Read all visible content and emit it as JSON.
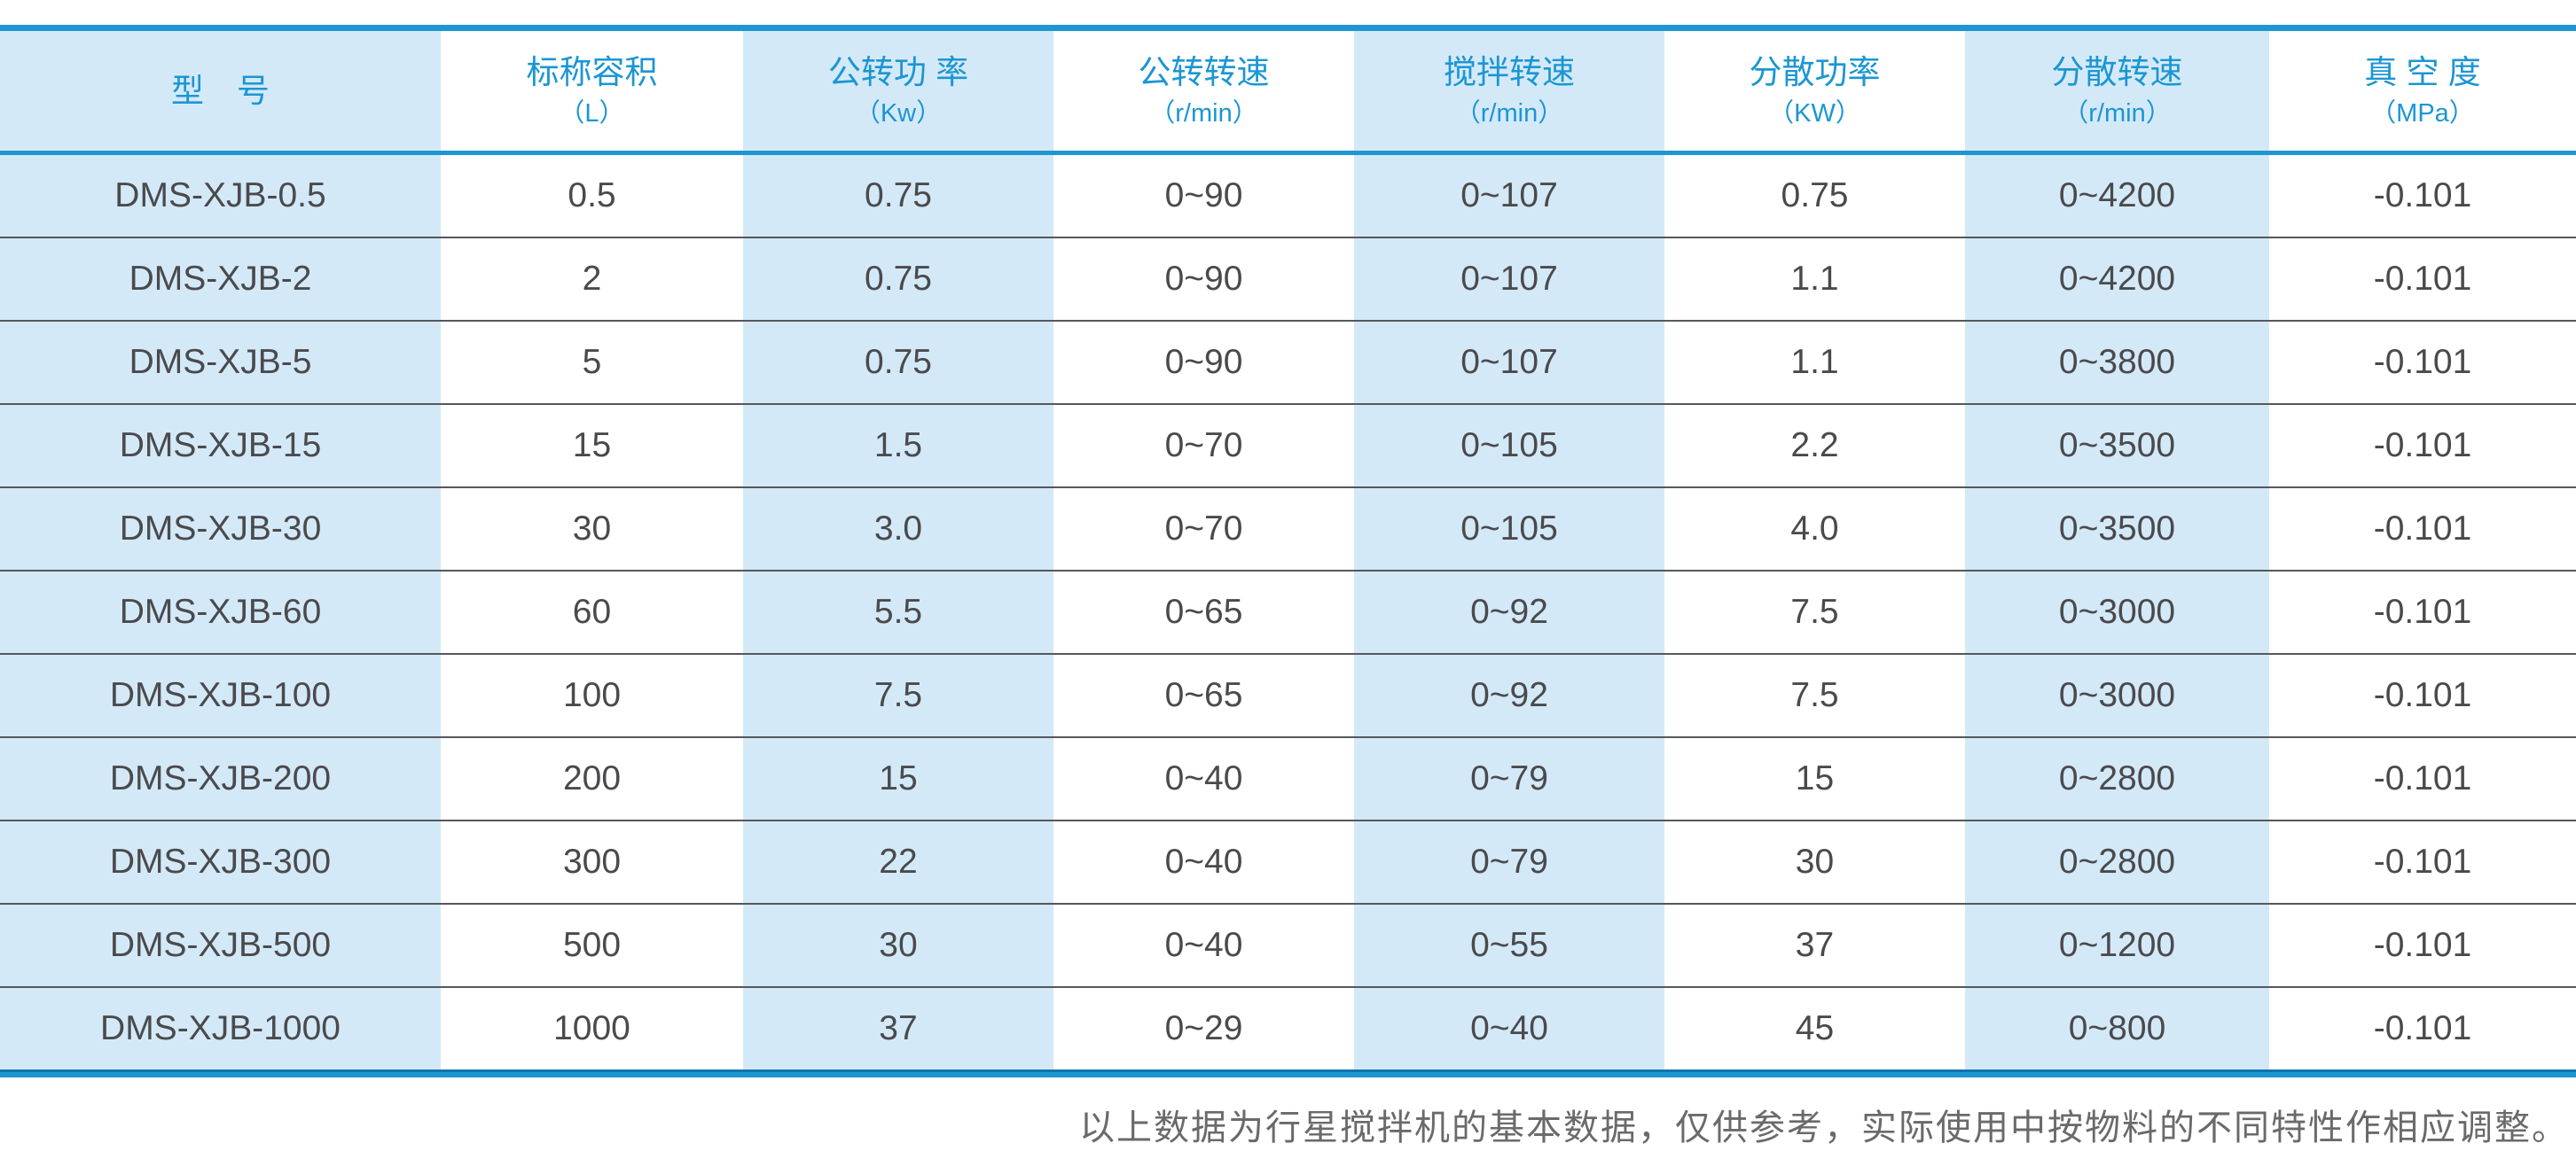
{
  "colors": {
    "accent_blue": "#1e96d2",
    "accent_blue_dark": "#1173ad",
    "header_text_blue": "#1b96d3",
    "cell_shade_blue": "#d4e9f7",
    "row_separator_gray": "#55585b",
    "data_text_gray": "#4a4a4d",
    "footnote_gray": "#6a6a6a"
  },
  "spec_table": {
    "columns": [
      {
        "label": "型　号",
        "unit": ""
      },
      {
        "label": "标称容积",
        "unit": "（L）"
      },
      {
        "label": "公转功 率",
        "unit": "（Kw）"
      },
      {
        "label": "公转转速",
        "unit": "（r/min）"
      },
      {
        "label": "搅拌转速",
        "unit": "（r/min）"
      },
      {
        "label": "分散功率",
        "unit": "（KW）"
      },
      {
        "label": "分散转速",
        "unit": "（r/min）"
      },
      {
        "label": "真 空 度",
        "unit": "（MPa）"
      }
    ],
    "rows": [
      [
        "DMS-XJB-0.5",
        "0.5",
        "0.75",
        "0~90",
        "0~107",
        "0.75",
        "0~4200",
        "-0.101"
      ],
      [
        "DMS-XJB-2",
        "2",
        "0.75",
        "0~90",
        "0~107",
        "1.1",
        "0~4200",
        "-0.101"
      ],
      [
        "DMS-XJB-5",
        "5",
        "0.75",
        "0~90",
        "0~107",
        "1.1",
        "0~3800",
        "-0.101"
      ],
      [
        "DMS-XJB-15",
        "15",
        "1.5",
        "0~70",
        "0~105",
        "2.2",
        "0~3500",
        "-0.101"
      ],
      [
        "DMS-XJB-30",
        "30",
        "3.0",
        "0~70",
        "0~105",
        "4.0",
        "0~3500",
        "-0.101"
      ],
      [
        "DMS-XJB-60",
        "60",
        "5.5",
        "0~65",
        "0~92",
        "7.5",
        "0~3000",
        "-0.101"
      ],
      [
        "DMS-XJB-100",
        "100",
        "7.5",
        "0~65",
        "0~92",
        "7.5",
        "0~3000",
        "-0.101"
      ],
      [
        "DMS-XJB-200",
        "200",
        "15",
        "0~40",
        "0~79",
        "15",
        "0~2800",
        "-0.101"
      ],
      [
        "DMS-XJB-300",
        "300",
        "22",
        "0~40",
        "0~79",
        "30",
        "0~2800",
        "-0.101"
      ],
      [
        "DMS-XJB-500",
        "500",
        "30",
        "0~40",
        "0~55",
        "37",
        "0~1200",
        "-0.101"
      ],
      [
        "DMS-XJB-1000",
        "1000",
        "37",
        "0~29",
        "0~40",
        "45",
        "0~800",
        "-0.101"
      ]
    ],
    "footnote": "以上数据为行星搅拌机的基本数据，仅供参考，实际使用中按物料的不同特性作相应调整。"
  }
}
